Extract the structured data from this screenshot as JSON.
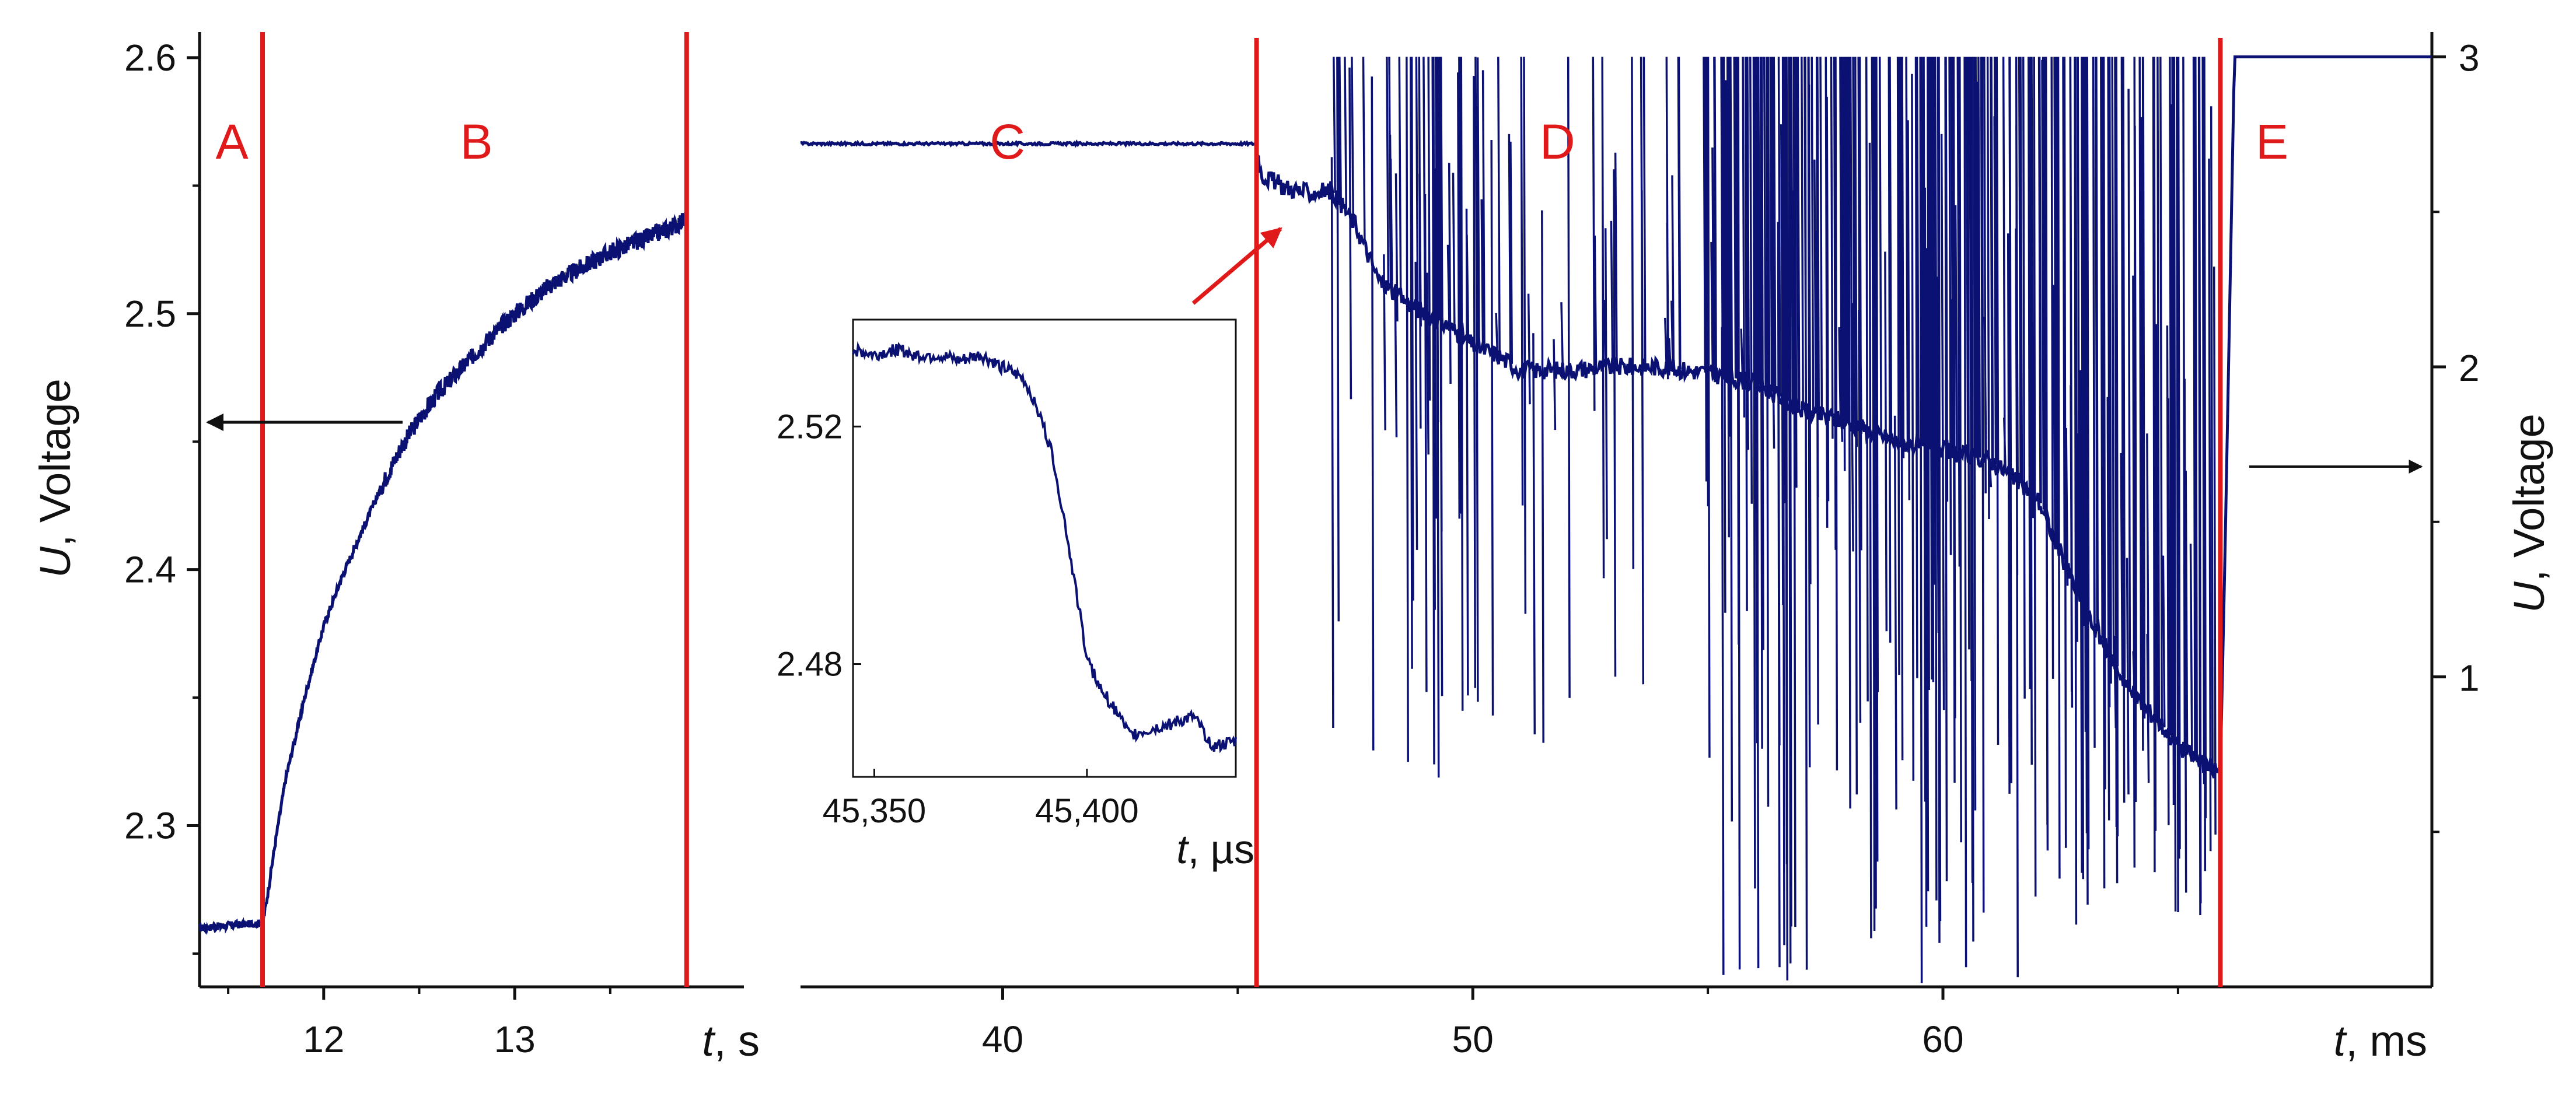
{
  "chart_data": [
    {
      "panel": "left",
      "type": "line",
      "xlabel_var": "t",
      "xlabel_unit": ", s",
      "ylabel_var": "U",
      "ylabel_unit": ", Voltage",
      "xlim": [
        11.35,
        14.2
      ],
      "ylim": [
        2.237,
        2.61
      ],
      "x_ticks": [
        12,
        13
      ],
      "y_ticks": [
        2.3,
        2.4,
        2.5,
        2.6
      ],
      "region_boundaries": [
        11.68,
        13.9
      ],
      "regions": [
        {
          "label": "A",
          "x": 11.52
        },
        {
          "label": "B",
          "x": 12.8
        }
      ],
      "annotation": "arrow pointing to left axis",
      "series": [
        {
          "color": "#0a1172",
          "x": [
            11.35,
            11.5,
            11.68,
            11.7,
            11.75,
            11.8,
            11.9,
            12.0,
            12.1,
            12.2,
            12.3,
            12.4,
            12.5,
            12.6,
            12.7,
            12.8,
            12.9,
            13.0,
            13.1,
            13.2,
            13.3,
            13.4,
            13.5,
            13.6,
            13.7,
            13.8,
            13.9
          ],
          "y": [
            2.26,
            2.261,
            2.262,
            2.27,
            2.295,
            2.318,
            2.35,
            2.378,
            2.398,
            2.415,
            2.432,
            2.447,
            2.459,
            2.469,
            2.477,
            2.485,
            2.493,
            2.5,
            2.506,
            2.512,
            2.516,
            2.52,
            2.524,
            2.527,
            2.53,
            2.533,
            2.537
          ]
        }
      ]
    },
    {
      "panel": "right",
      "type": "line",
      "xlabel_var": "t",
      "xlabel_unit": ", ms",
      "ylabel_var": "U",
      "ylabel_unit": ", Voltage",
      "xlim": [
        35.7,
        70.4
      ],
      "ylim": [
        0,
        3.08
      ],
      "x_ticks": [
        40,
        50,
        60
      ],
      "y_ticks": [
        1,
        2,
        3
      ],
      "region_boundaries": [
        45.4,
        65.9
      ],
      "regions": [
        {
          "label": "C",
          "x": 40.1
        },
        {
          "label": "D",
          "x": 51.8
        },
        {
          "label": "E",
          "x": 67.0
        }
      ],
      "annotation": "arrow pointing to right axis",
      "series": [
        {
          "color": "#0a1172",
          "x": [
            35.7,
            45.4,
            45.5,
            46.0,
            46.5,
            47.0,
            47.5,
            48.0,
            48.5,
            49.0,
            49.5,
            50.0,
            50.5,
            51.0,
            52.0,
            53.0,
            54.0,
            55.0,
            56.0,
            57.0,
            58.0,
            59.0,
            60.0,
            61.0,
            62.0,
            63.0,
            64.0,
            64.5,
            65.0,
            65.5,
            65.9,
            66.0,
            66.2,
            67.0,
            68.0,
            70.4
          ],
          "y": [
            2.72,
            2.72,
            2.62,
            2.58,
            2.56,
            2.57,
            2.46,
            2.28,
            2.22,
            2.17,
            2.13,
            2.07,
            2.04,
            1.99,
            1.99,
            2.0,
            2.0,
            1.98,
            1.95,
            1.86,
            1.82,
            1.76,
            1.73,
            1.7,
            1.58,
            1.22,
            0.95,
            0.87,
            0.78,
            0.72,
            0.69,
            1.4,
            3.0,
            3.0,
            3.0,
            3.0
          ]
        }
      ],
      "spikes": {
        "color": "#0a1172",
        "description": "dense noise spikes between 47 and 66 ms spanning ~0 to 3 V"
      }
    },
    {
      "panel": "inset",
      "type": "line",
      "xlabel_var": "t",
      "xlabel_unit": ", µs",
      "xlim": [
        45345,
        45435
      ],
      "ylim": [
        2.461,
        2.538
      ],
      "x_ticks": [
        45350,
        45400
      ],
      "x_tick_labels": [
        "45,350",
        "45,400"
      ],
      "y_ticks": [
        2.48,
        2.52
      ],
      "series": [
        {
          "color": "#0a1172",
          "x": [
            45345,
            45350,
            45355,
            45360,
            45365,
            45370,
            45375,
            45380,
            45385,
            45388,
            45392,
            45395,
            45398,
            45400,
            45403,
            45407,
            45410,
            45415,
            45420,
            45425,
            45430,
            45435
          ],
          "y": [
            2.533,
            2.532,
            2.533,
            2.532,
            2.532,
            2.531,
            2.532,
            2.53,
            2.528,
            2.524,
            2.515,
            2.503,
            2.49,
            2.481,
            2.476,
            2.472,
            2.468,
            2.469,
            2.47,
            2.471,
            2.466,
            2.467
          ]
        }
      ]
    }
  ]
}
